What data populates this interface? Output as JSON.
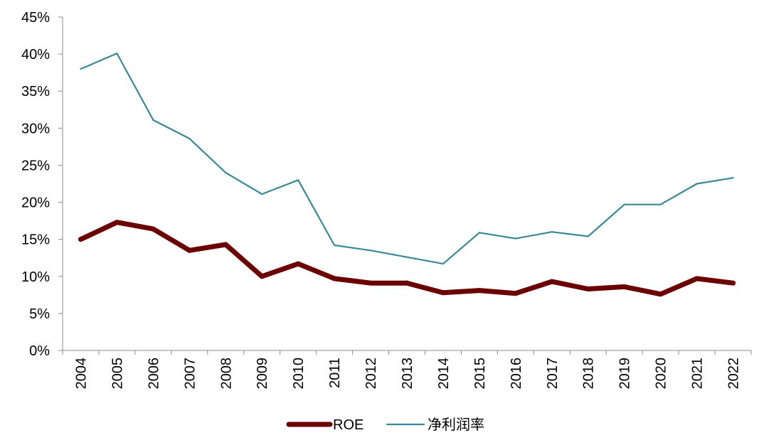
{
  "chart_data": {
    "type": "line",
    "categories": [
      "2004",
      "2005",
      "2006",
      "2007",
      "2008",
      "2009",
      "2010",
      "2011",
      "2012",
      "2013",
      "2014",
      "2015",
      "2016",
      "2017",
      "2018",
      "2019",
      "2020",
      "2021",
      "2022"
    ],
    "series": [
      {
        "name": "ROE",
        "color": "#6b0000",
        "values": [
          15.0,
          17.3,
          16.4,
          13.5,
          14.3,
          10.0,
          11.7,
          9.7,
          9.1,
          9.1,
          7.8,
          8.1,
          7.7,
          9.3,
          8.3,
          8.6,
          7.6,
          9.7,
          9.1
        ]
      },
      {
        "name": "净利润率",
        "color": "#3a8797",
        "values": [
          38.0,
          40.1,
          31.1,
          28.6,
          24.0,
          21.1,
          23.0,
          14.2,
          13.5,
          12.6,
          11.7,
          15.9,
          15.1,
          16.0,
          15.4,
          19.7,
          19.7,
          22.5,
          23.3
        ]
      }
    ],
    "y_ticks": [
      "0%",
      "5%",
      "10%",
      "15%",
      "20%",
      "25%",
      "30%",
      "35%",
      "40%",
      "45%"
    ],
    "ylim": [
      0,
      45
    ],
    "grid": false,
    "legend_position": "bottom-center"
  }
}
